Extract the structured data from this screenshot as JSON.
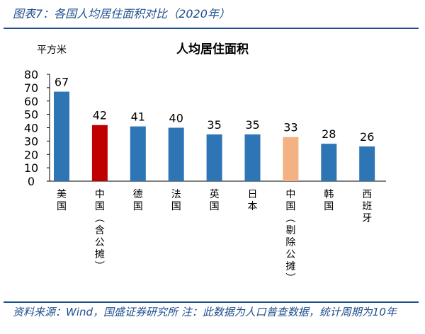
{
  "figure_title": "图表7：各国人均居住面积对比（2020年）",
  "source_note": "资料来源：Wind，国盛证券研究所 注：此数据为人口普查数据，统计周期为10年",
  "chart_data": {
    "type": "bar",
    "title": "人均居住面积",
    "ylabel": "平方米",
    "xlabel": "",
    "ylim": [
      0,
      80
    ],
    "yticks": [
      0,
      10,
      20,
      30,
      40,
      50,
      60,
      70,
      80
    ],
    "grid": false,
    "categories": [
      "美国",
      "中国（含公摊）",
      "德国",
      "法国",
      "英国",
      "日本",
      "中国（剔除公摊）",
      "韩国",
      "西班牙"
    ],
    "values": [
      67,
      42,
      41,
      40,
      35,
      35,
      33,
      28,
      26
    ],
    "colors": [
      "#2e75b6",
      "#c00000",
      "#2e75b6",
      "#2e75b6",
      "#2e75b6",
      "#2e75b6",
      "#f4b183",
      "#2e75b6",
      "#2e75b6"
    ]
  }
}
